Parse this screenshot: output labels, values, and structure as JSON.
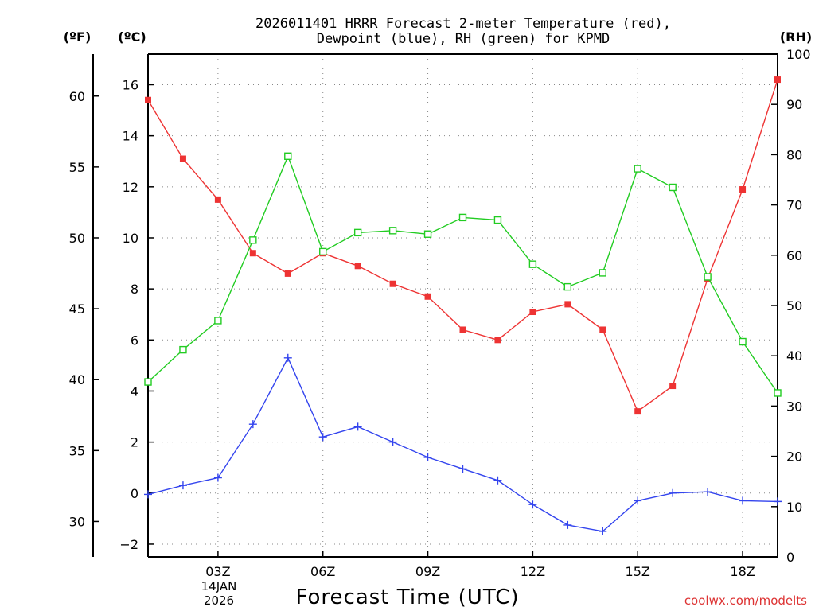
{
  "chart_data": {
    "type": "line",
    "title_line1": "2026011401 HRRR Forecast 2-meter Temperature (red),",
    "title_line2": "Dewpoint (blue), RH (green) for KPMD",
    "xlabel": "Forecast Time (UTC)",
    "date_line1": "14JAN",
    "date_line2": "2026",
    "credit": "coolwx.com/modelts",
    "unit_fahrenheit": "(ºF)",
    "unit_celsius": "(ºC)",
    "unit_rh": "(RH)",
    "x_range": [
      1,
      19
    ],
    "x_ticks": [
      {
        "hour": 3,
        "label": "03Z"
      },
      {
        "hour": 6,
        "label": "06Z"
      },
      {
        "hour": 9,
        "label": "09Z"
      },
      {
        "hour": 12,
        "label": "12Z"
      },
      {
        "hour": 15,
        "label": "15Z"
      },
      {
        "hour": 18,
        "label": "18Z"
      }
    ],
    "celsius_axis": {
      "range": [
        -2.5,
        17.2
      ],
      "ticks": [
        -2,
        0,
        2,
        4,
        6,
        8,
        10,
        12,
        14,
        16
      ]
    },
    "fahrenheit_axis": {
      "ticks": [
        30,
        35,
        40,
        45,
        50,
        55,
        60
      ]
    },
    "rh_axis": {
      "range": [
        0,
        100
      ],
      "ticks": [
        0,
        10,
        20,
        30,
        40,
        50,
        60,
        70,
        80,
        90,
        100
      ]
    },
    "x": [
      1,
      2,
      3,
      4,
      5,
      6,
      7,
      8,
      9,
      10,
      11,
      12,
      13,
      14,
      15,
      16,
      17,
      18,
      19
    ],
    "series": [
      {
        "name": "Temperature",
        "unit": "C",
        "color": "#ee3333",
        "marker": "filled-square",
        "values": [
          15.4,
          13.1,
          11.5,
          9.4,
          8.6,
          9.4,
          8.9,
          8.2,
          7.7,
          6.4,
          6.0,
          7.1,
          7.4,
          6.4,
          3.2,
          4.2,
          8.4,
          11.9,
          16.2
        ]
      },
      {
        "name": "Dewpoint",
        "unit": "C",
        "color": "#3344ee",
        "marker": "plus",
        "values": [
          -0.05,
          0.3,
          0.6,
          2.7,
          5.3,
          2.2,
          2.6,
          2.0,
          1.4,
          0.95,
          0.5,
          -0.45,
          -1.25,
          -1.5,
          -0.3,
          0.0,
          0.05,
          -0.3,
          -0.33
        ]
      },
      {
        "name": "RH",
        "unit": "%",
        "color": "#22cc22",
        "marker": "open-square",
        "values": [
          34.8,
          41.2,
          47.0,
          63.0,
          79.7,
          60.7,
          64.5,
          64.9,
          64.2,
          67.5,
          67.0,
          58.2,
          53.7,
          56.5,
          77.2,
          73.5,
          55.7,
          42.8,
          32.6
        ]
      }
    ]
  }
}
